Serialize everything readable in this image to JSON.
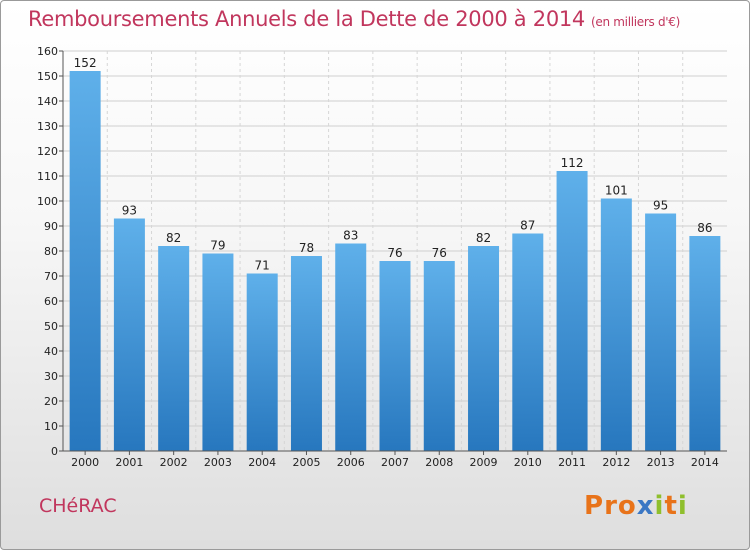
{
  "header": {
    "title": "Remboursements Annuels de la Dette de 2000 à 2014",
    "unit": "(en milliers d'€)"
  },
  "footer": {
    "commune": "CHéRAC",
    "logo_letters": [
      "P",
      "r",
      "o",
      "x",
      "i",
      "t",
      "i"
    ]
  },
  "colors": {
    "title": "#c1365d",
    "bar": "#3a8fd6",
    "logo": [
      "#e8731a",
      "#e8731a",
      "#e8731a",
      "#3b77c4",
      "#8fbf2d",
      "#e8731a",
      "#8fbf2d"
    ]
  },
  "chart_data": {
    "type": "bar",
    "title": "Remboursements Annuels de la Dette de 2000 à 2014",
    "categories": [
      "2000",
      "2001",
      "2002",
      "2003",
      "2004",
      "2005",
      "2006",
      "2007",
      "2008",
      "2009",
      "2010",
      "2011",
      "2012",
      "2013",
      "2014"
    ],
    "values": [
      152,
      93,
      82,
      79,
      71,
      78,
      83,
      76,
      76,
      82,
      87,
      112,
      101,
      95,
      86
    ],
    "ylim": [
      0,
      160
    ],
    "yticks": [
      0,
      10,
      20,
      30,
      40,
      50,
      60,
      70,
      80,
      90,
      100,
      110,
      120,
      130,
      140,
      150,
      160
    ],
    "grid": true,
    "legend": "none"
  }
}
